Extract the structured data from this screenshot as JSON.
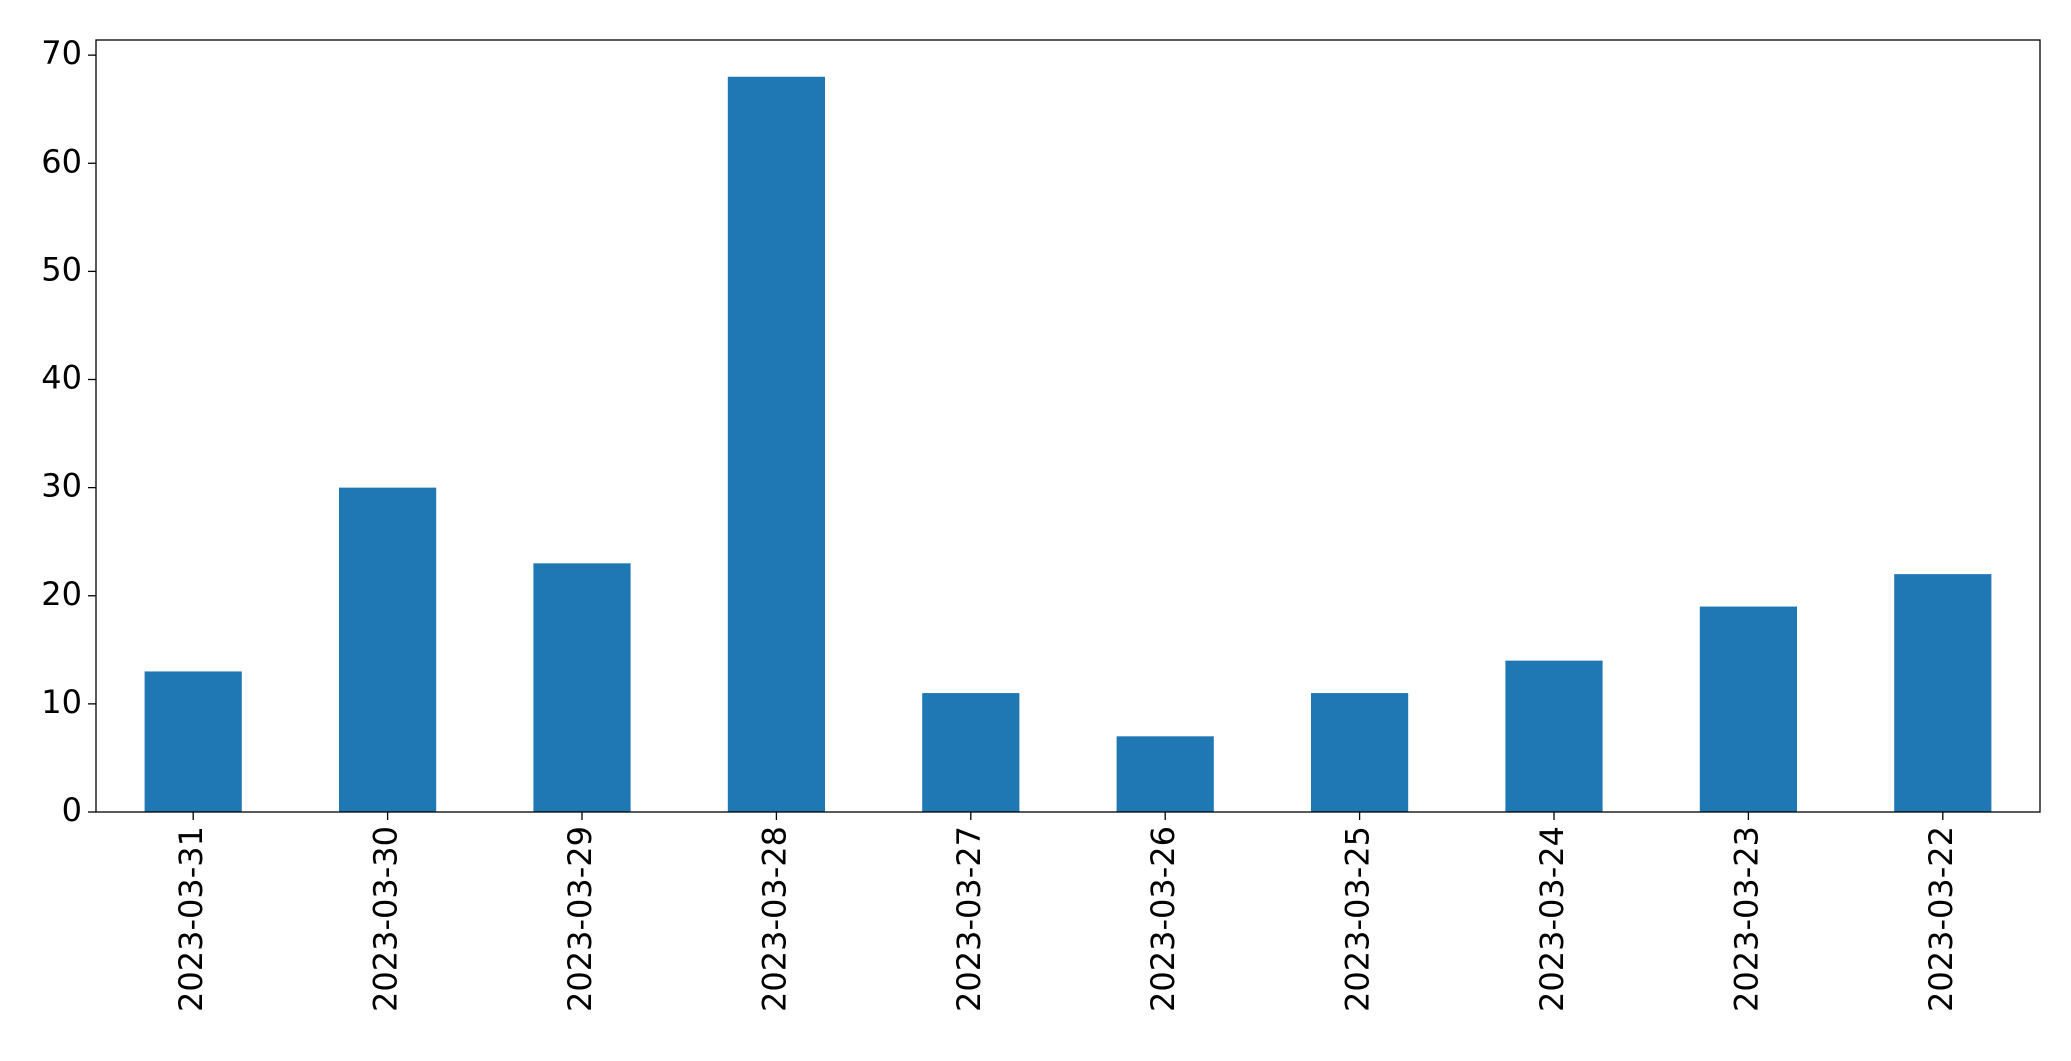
{
  "chart_data": {
    "type": "bar",
    "categories": [
      "2023-03-31",
      "2023-03-30",
      "2023-03-29",
      "2023-03-28",
      "2023-03-27",
      "2023-03-26",
      "2023-03-25",
      "2023-03-24",
      "2023-03-23",
      "2023-03-22"
    ],
    "values": [
      13,
      30,
      23,
      68,
      11,
      7,
      11,
      14,
      19,
      22
    ],
    "color": "#1f77b4",
    "ylim": [
      0,
      71.4
    ],
    "yticks": [
      0,
      10,
      20,
      30,
      40,
      50,
      60,
      70
    ],
    "grid": false
  }
}
